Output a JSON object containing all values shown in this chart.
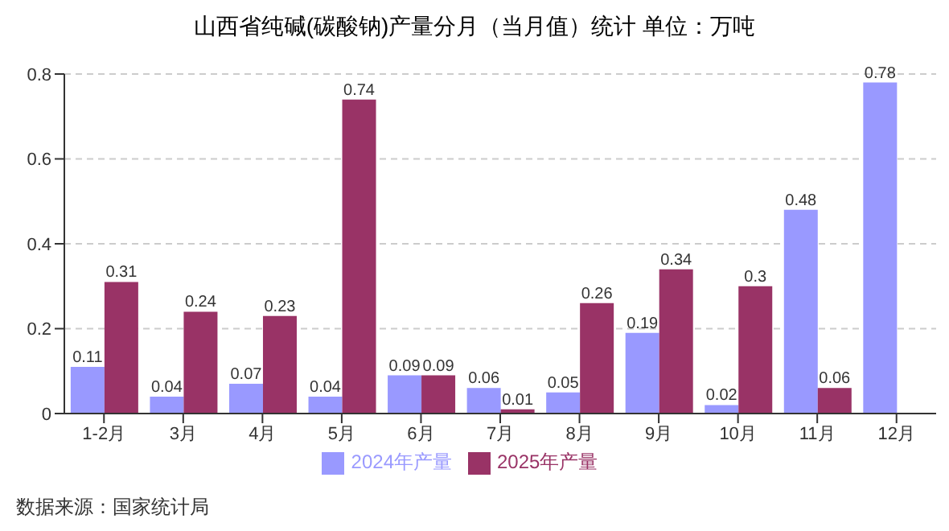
{
  "chart_data": {
    "type": "bar",
    "title": "山西省纯碱(碳酸钠)产量分月（当月值）统计  单位：万吨",
    "categories": [
      "1-2月",
      "3月",
      "4月",
      "5月",
      "6月",
      "7月",
      "8月",
      "9月",
      "10月",
      "11月",
      "12月"
    ],
    "series": [
      {
        "name": "2024年产量",
        "color": "#9999ff",
        "values": [
          0.11,
          0.04,
          0.07,
          0.04,
          0.09,
          0.06,
          0.05,
          0.19,
          0.02,
          0.48,
          0.78
        ]
      },
      {
        "name": "2025年产量",
        "color": "#993366",
        "values": [
          0.31,
          0.24,
          0.23,
          0.74,
          0.09,
          0.01,
          0.26,
          0.34,
          0.3,
          0.06,
          null
        ]
      }
    ],
    "ylim": [
      0,
      0.8
    ],
    "yticks": [
      0,
      0.2,
      0.4,
      0.6,
      0.8
    ],
    "grid": "y",
    "legend": "bottom",
    "data_labels": true,
    "annotations": [
      "数据来源：国家统计局"
    ]
  }
}
